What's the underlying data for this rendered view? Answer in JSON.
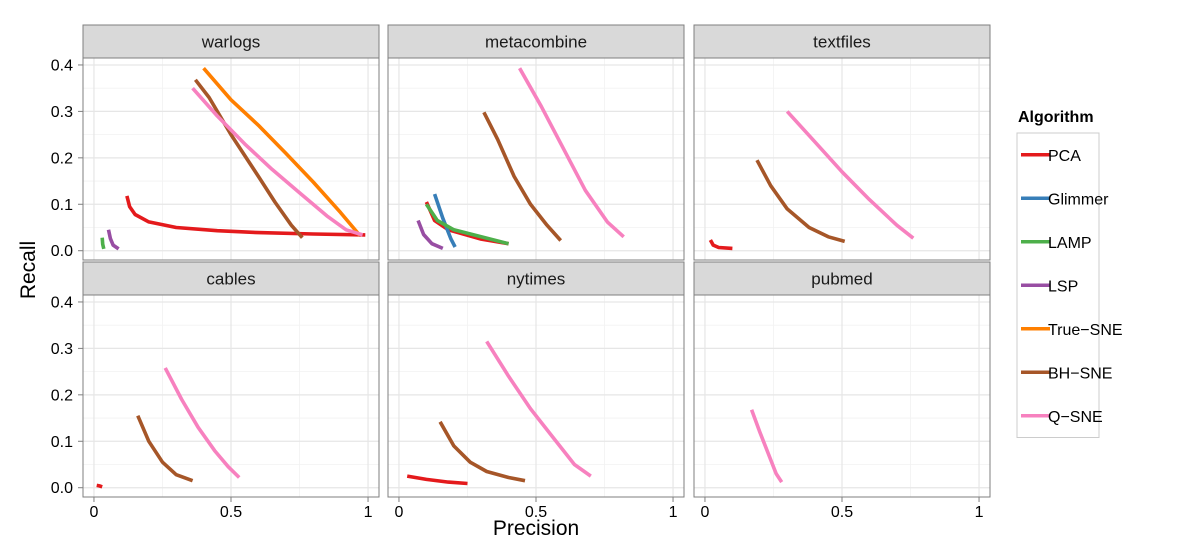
{
  "chart_data": {
    "type": "line",
    "xlabel": "Precision",
    "ylabel": "Recall",
    "xlim": [
      -0.04,
      1.04
    ],
    "ylim": [
      -0.02,
      0.415
    ],
    "x_ticks": [
      0,
      0.5,
      1
    ],
    "x_tick_labels": [
      "0",
      "0.5",
      "1"
    ],
    "y_ticks": [
      0.0,
      0.1,
      0.2,
      0.3,
      0.4
    ],
    "y_tick_labels": [
      "0.0",
      "0.1",
      "0.2",
      "0.3",
      "0.4"
    ],
    "legend": {
      "title": "Algorithm",
      "placement": "right",
      "entries": [
        {
          "name": "PCA",
          "color": "#e41a1c"
        },
        {
          "name": "Glimmer",
          "color": "#377eb8"
        },
        {
          "name": "LAMP",
          "color": "#4daf4a"
        },
        {
          "name": "LSP",
          "color": "#984ea3"
        },
        {
          "name": "True−SNE",
          "color": "#ff7f00"
        },
        {
          "name": "BH−SNE",
          "color": "#a65628"
        },
        {
          "name": "Q−SNE",
          "color": "#f781bf"
        }
      ]
    },
    "grid": true,
    "panels": [
      {
        "title": "warlogs",
        "series": [
          {
            "name": "PCA",
            "points": [
              [
                0.12,
                0.118
              ],
              [
                0.13,
                0.095
              ],
              [
                0.15,
                0.078
              ],
              [
                0.2,
                0.062
              ],
              [
                0.3,
                0.05
              ],
              [
                0.45,
                0.043
              ],
              [
                0.6,
                0.039
              ],
              [
                0.8,
                0.036
              ],
              [
                0.99,
                0.034
              ]
            ]
          },
          {
            "name": "LAMP",
            "points": [
              [
                0.03,
                0.028
              ],
              [
                0.032,
                0.014
              ],
              [
                0.036,
                0.004
              ]
            ]
          },
          {
            "name": "LSP",
            "points": [
              [
                0.053,
                0.045
              ],
              [
                0.06,
                0.026
              ],
              [
                0.07,
                0.012
              ],
              [
                0.09,
                0.004
              ]
            ]
          },
          {
            "name": "True−SNE",
            "points": [
              [
                0.4,
                0.393
              ],
              [
                0.5,
                0.325
              ],
              [
                0.6,
                0.27
              ],
              [
                0.7,
                0.21
              ],
              [
                0.8,
                0.148
              ],
              [
                0.9,
                0.082
              ],
              [
                0.97,
                0.033
              ]
            ]
          },
          {
            "name": "BH−SNE",
            "points": [
              [
                0.37,
                0.368
              ],
              [
                0.42,
                0.33
              ],
              [
                0.5,
                0.25
              ],
              [
                0.6,
                0.16
              ],
              [
                0.66,
                0.105
              ],
              [
                0.72,
                0.055
              ],
              [
                0.76,
                0.028
              ]
            ]
          },
          {
            "name": "Q−SNE",
            "points": [
              [
                0.36,
                0.35
              ],
              [
                0.45,
                0.29
              ],
              [
                0.55,
                0.23
              ],
              [
                0.65,
                0.175
              ],
              [
                0.75,
                0.125
              ],
              [
                0.85,
                0.075
              ],
              [
                0.92,
                0.045
              ],
              [
                0.98,
                0.034
              ]
            ]
          }
        ]
      },
      {
        "title": "metacombine",
        "series": [
          {
            "name": "PCA",
            "points": [
              [
                0.1,
                0.105
              ],
              [
                0.13,
                0.065
              ],
              [
                0.18,
                0.045
              ],
              [
                0.3,
                0.025
              ],
              [
                0.4,
                0.015
              ]
            ]
          },
          {
            "name": "Glimmer",
            "points": [
              [
                0.13,
                0.122
              ],
              [
                0.16,
                0.07
              ],
              [
                0.19,
                0.025
              ],
              [
                0.205,
                0.008
              ]
            ]
          },
          {
            "name": "LAMP",
            "points": [
              [
                0.1,
                0.1
              ],
              [
                0.14,
                0.065
              ],
              [
                0.2,
                0.045
              ],
              [
                0.3,
                0.03
              ],
              [
                0.4,
                0.015
              ]
            ]
          },
          {
            "name": "LSP",
            "points": [
              [
                0.07,
                0.065
              ],
              [
                0.09,
                0.035
              ],
              [
                0.12,
                0.015
              ],
              [
                0.16,
                0.005
              ]
            ]
          },
          {
            "name": "BH−SNE",
            "points": [
              [
                0.31,
                0.298
              ],
              [
                0.36,
                0.24
              ],
              [
                0.42,
                0.16
              ],
              [
                0.48,
                0.1
              ],
              [
                0.54,
                0.055
              ],
              [
                0.59,
                0.022
              ]
            ]
          },
          {
            "name": "Q−SNE",
            "points": [
              [
                0.44,
                0.393
              ],
              [
                0.52,
                0.31
              ],
              [
                0.6,
                0.22
              ],
              [
                0.68,
                0.13
              ],
              [
                0.76,
                0.062
              ],
              [
                0.82,
                0.03
              ]
            ]
          }
        ]
      },
      {
        "title": "textfiles",
        "series": [
          {
            "name": "PCA",
            "points": [
              [
                0.02,
                0.023
              ],
              [
                0.03,
                0.012
              ],
              [
                0.05,
                0.007
              ],
              [
                0.1,
                0.005
              ]
            ]
          },
          {
            "name": "BH−SNE",
            "points": [
              [
                0.19,
                0.195
              ],
              [
                0.24,
                0.14
              ],
              [
                0.3,
                0.09
              ],
              [
                0.38,
                0.05
              ],
              [
                0.45,
                0.03
              ],
              [
                0.51,
                0.02
              ]
            ]
          },
          {
            "name": "Q−SNE",
            "points": [
              [
                0.3,
                0.3
              ],
              [
                0.4,
                0.235
              ],
              [
                0.5,
                0.17
              ],
              [
                0.6,
                0.11
              ],
              [
                0.7,
                0.055
              ],
              [
                0.76,
                0.027
              ]
            ]
          }
        ]
      },
      {
        "title": "cables",
        "series": [
          {
            "name": "PCA",
            "points": [
              [
                0.01,
                0.005
              ],
              [
                0.02,
                0.004
              ],
              [
                0.03,
                0.002
              ]
            ]
          },
          {
            "name": "BH−SNE",
            "points": [
              [
                0.16,
                0.155
              ],
              [
                0.2,
                0.1
              ],
              [
                0.25,
                0.055
              ],
              [
                0.3,
                0.028
              ],
              [
                0.36,
                0.015
              ]
            ]
          },
          {
            "name": "Q−SNE",
            "points": [
              [
                0.26,
                0.258
              ],
              [
                0.32,
                0.19
              ],
              [
                0.38,
                0.13
              ],
              [
                0.44,
                0.08
              ],
              [
                0.49,
                0.045
              ],
              [
                0.53,
                0.022
              ]
            ]
          }
        ]
      },
      {
        "title": "nytimes",
        "series": [
          {
            "name": "PCA",
            "points": [
              [
                0.03,
                0.025
              ],
              [
                0.1,
                0.018
              ],
              [
                0.18,
                0.012
              ],
              [
                0.25,
                0.009
              ]
            ]
          },
          {
            "name": "BH−SNE",
            "points": [
              [
                0.15,
                0.142
              ],
              [
                0.2,
                0.09
              ],
              [
                0.26,
                0.055
              ],
              [
                0.32,
                0.035
              ],
              [
                0.4,
                0.022
              ],
              [
                0.46,
                0.015
              ]
            ]
          },
          {
            "name": "Q−SNE",
            "points": [
              [
                0.32,
                0.315
              ],
              [
                0.4,
                0.24
              ],
              [
                0.48,
                0.17
              ],
              [
                0.56,
                0.11
              ],
              [
                0.64,
                0.05
              ],
              [
                0.7,
                0.025
              ]
            ]
          }
        ]
      },
      {
        "title": "pubmed",
        "series": [
          {
            "name": "Q−SNE",
            "points": [
              [
                0.17,
                0.168
              ],
              [
                0.2,
                0.12
              ],
              [
                0.23,
                0.075
              ],
              [
                0.26,
                0.03
              ],
              [
                0.28,
                0.012
              ]
            ]
          }
        ]
      }
    ]
  }
}
